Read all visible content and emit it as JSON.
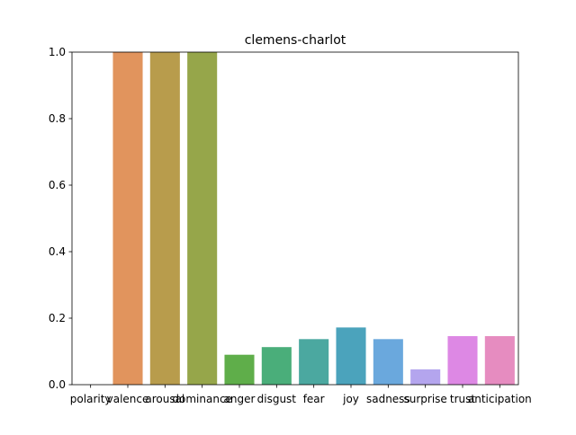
{
  "chart_data": {
    "type": "bar",
    "title": "clemens-charlot",
    "xlabel": "",
    "ylabel": "",
    "ylim": [
      0,
      1.0
    ],
    "yticks": [
      "0.0",
      "0.2",
      "0.4",
      "0.6",
      "0.8",
      "1.0"
    ],
    "grid": false,
    "categories": [
      "polarity",
      "valence",
      "arousal",
      "dominance",
      "anger",
      "disgust",
      "fear",
      "joy",
      "sadness",
      "surprise",
      "trust",
      "anticipation"
    ],
    "values": [
      0.0,
      1.0,
      1.0,
      1.0,
      0.09,
      0.113,
      0.137,
      0.172,
      0.137,
      0.046,
      0.146,
      0.146
    ],
    "colors": [
      "#3274a1",
      "#e1945d",
      "#b89c4c",
      "#96a64a",
      "#5fae4a",
      "#4aae7a",
      "#4ba8a0",
      "#4ba3bc",
      "#6aa8dd",
      "#b4a5ee",
      "#dd88e4",
      "#e68cc0"
    ]
  }
}
